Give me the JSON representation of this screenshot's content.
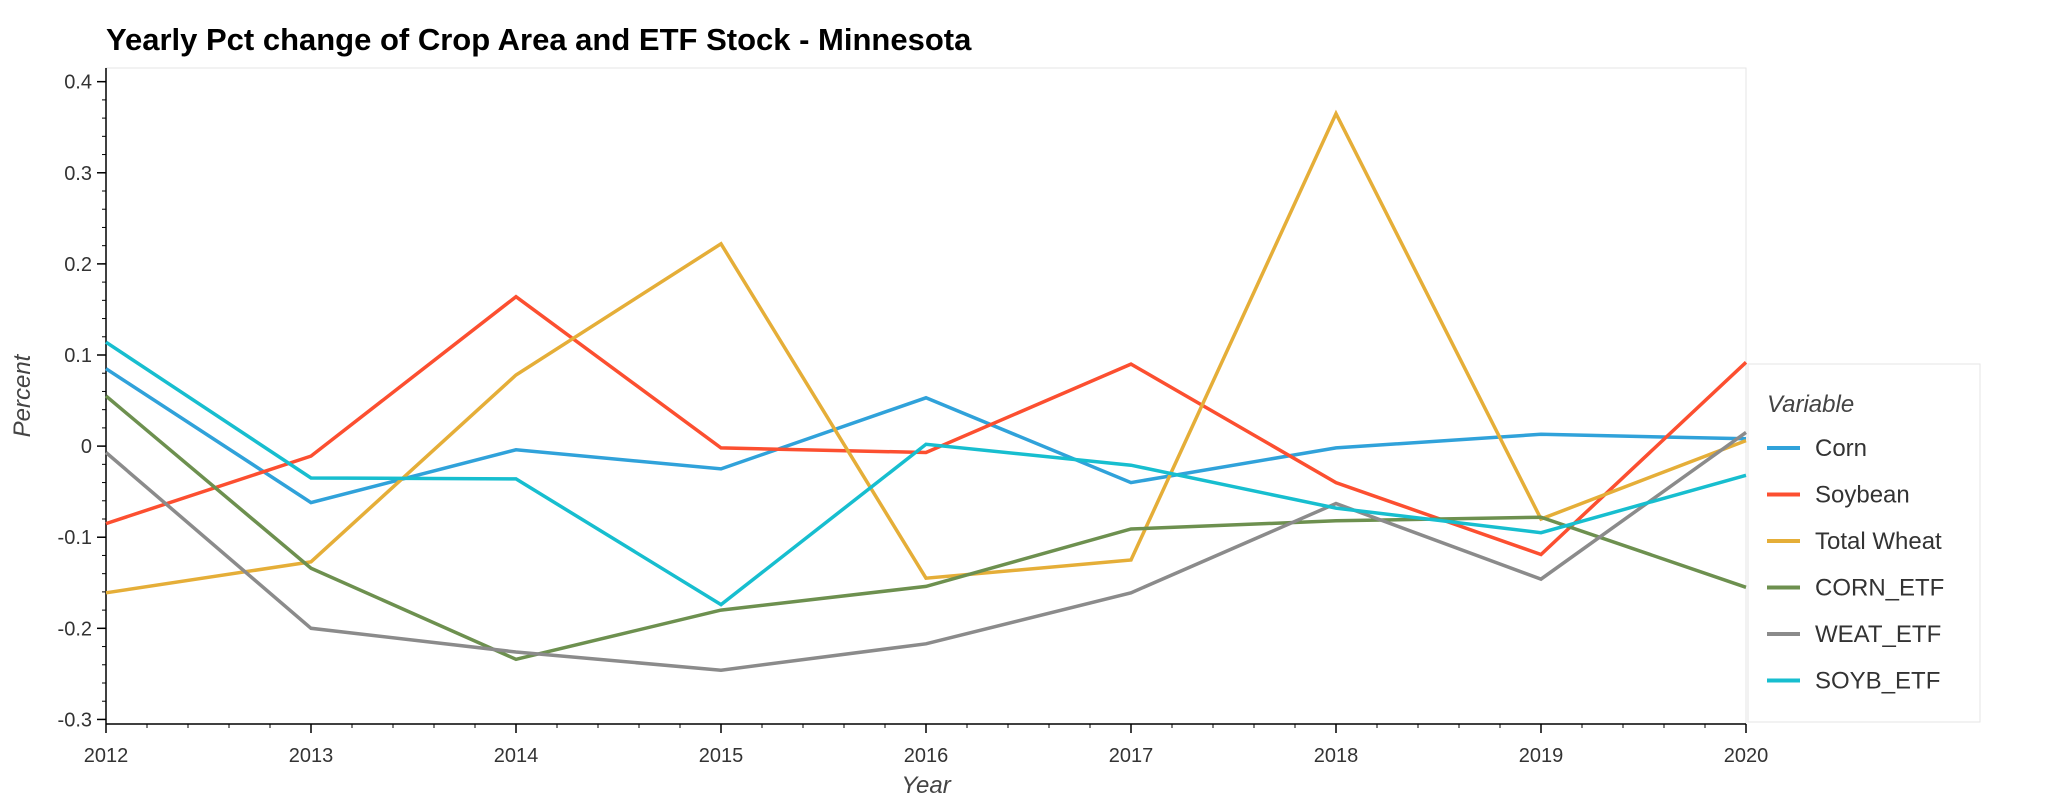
{
  "chart_data": {
    "type": "line",
    "title": "Yearly Pct change of Crop Area and ETF Stock - Minnesota",
    "xlabel": "Year",
    "ylabel": "Percent",
    "x": [
      2012,
      2013,
      2014,
      2015,
      2016,
      2017,
      2018,
      2019,
      2020
    ],
    "xlim": [
      2012,
      2020
    ],
    "ylim": [
      -0.305,
      0.415
    ],
    "yticks": [
      0.4,
      0.3,
      0.2,
      0.1,
      0,
      -0.1,
      -0.2,
      -0.3
    ],
    "ytick_labels": [
      "0.4",
      "0.3",
      "0.2",
      "0.1",
      "0",
      "-0.1",
      "-0.2",
      "-0.3"
    ],
    "xtick_labels": [
      "2012",
      "2013",
      "2014",
      "2015",
      "2016",
      "2017",
      "2018",
      "2019",
      "2020"
    ],
    "grid": false,
    "legend": {
      "title": "Variable",
      "placement": "right"
    },
    "series": [
      {
        "name": "Corn",
        "color": "#30a2da",
        "values": [
          0.085,
          -0.062,
          -0.004,
          -0.025,
          0.053,
          -0.04,
          -0.002,
          0.013,
          0.008
        ]
      },
      {
        "name": "Soybean",
        "color": "#fc4f30",
        "values": [
          -0.085,
          -0.011,
          0.164,
          -0.002,
          -0.007,
          0.09,
          -0.04,
          -0.119,
          0.092
        ]
      },
      {
        "name": "Total Wheat",
        "color": "#e5ae38",
        "values": [
          -0.161,
          -0.127,
          0.078,
          0.222,
          -0.145,
          -0.125,
          0.365,
          -0.08,
          0.006
        ]
      },
      {
        "name": "CORN_ETF",
        "color": "#6d904f",
        "values": [
          0.055,
          -0.134,
          -0.234,
          -0.18,
          -0.154,
          -0.091,
          -0.082,
          -0.078,
          -0.155
        ]
      },
      {
        "name": "WEAT_ETF",
        "color": "#8b8b8b",
        "values": [
          -0.007,
          -0.2,
          -0.226,
          -0.246,
          -0.217,
          -0.161,
          -0.063,
          -0.146,
          0.015
        ]
      },
      {
        "name": "SOYB_ETF",
        "color": "#17becf",
        "values": [
          0.114,
          -0.035,
          -0.036,
          -0.174,
          0.002,
          -0.021,
          -0.068,
          -0.095,
          -0.032
        ]
      }
    ]
  }
}
